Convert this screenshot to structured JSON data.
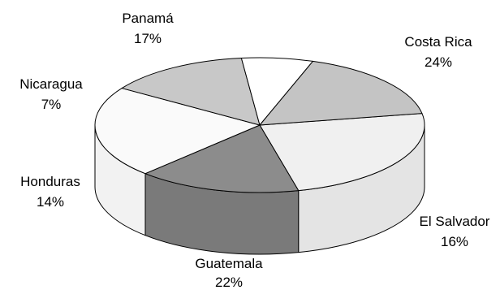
{
  "chart_data": {
    "type": "pie",
    "style": "3d",
    "categories": [
      "Costa Rica",
      "El Salvador",
      "Guatemala",
      "Honduras",
      "Nicaragua",
      "Panamá"
    ],
    "values": [
      24,
      16,
      22,
      14,
      7,
      17
    ],
    "labels": [
      "24%",
      "16%",
      "22%",
      "14%",
      "7%",
      "17%"
    ],
    "colors": [
      "#f0f0f0",
      "#8c8c8c",
      "#fafafa",
      "#c8c8c8",
      "#ffffff",
      "#c4c4c4"
    ],
    "side_colors": [
      "#e4e4e4",
      "#7a7a7a",
      "#f2f2f2",
      "#b2b2b2",
      "#f5f5f5",
      "#b0b0b0"
    ]
  }
}
